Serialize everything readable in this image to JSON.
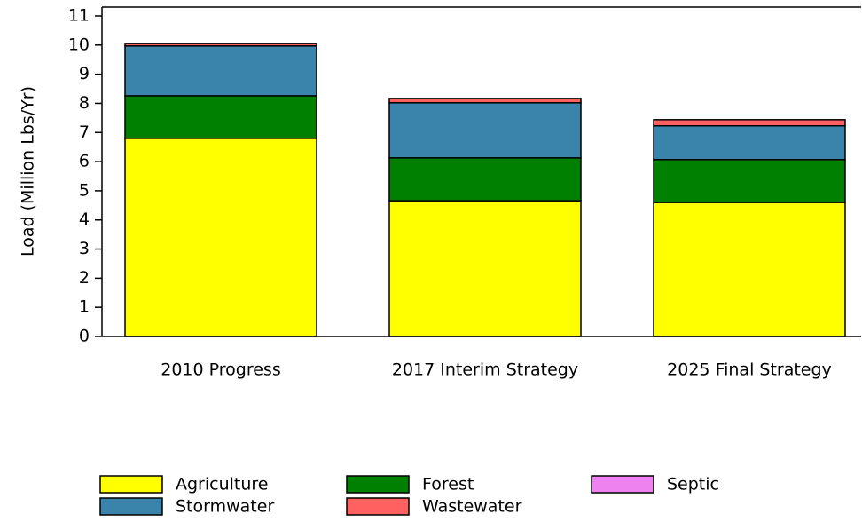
{
  "chart_data": {
    "type": "bar",
    "stacked": true,
    "y_label": "Load (Million Lbs/Yr)",
    "categories": [
      "2010 Progress",
      "2017 Interim Strategy",
      "2025 Final Strategy"
    ],
    "series": [
      {
        "name": "Agriculture",
        "color": "#ffff00",
        "values": [
          6.8,
          4.66,
          4.6
        ]
      },
      {
        "name": "Forest",
        "color": "#008000",
        "values": [
          1.46,
          1.47,
          1.47
        ]
      },
      {
        "name": "Stormwater",
        "color": "#3a84ac",
        "values": [
          1.71,
          1.89,
          1.16
        ]
      },
      {
        "name": "Wastewater",
        "color": "#ff6060",
        "values": [
          0.09,
          0.15,
          0.21
        ]
      },
      {
        "name": "Septic",
        "color": "#ee82ee",
        "values": [
          0,
          0,
          0
        ]
      }
    ],
    "ylim": [
      0,
      11
    ],
    "yticks": [
      0,
      1,
      2,
      3,
      4,
      5,
      6,
      7,
      8,
      9,
      10,
      11
    ],
    "grid": false
  }
}
